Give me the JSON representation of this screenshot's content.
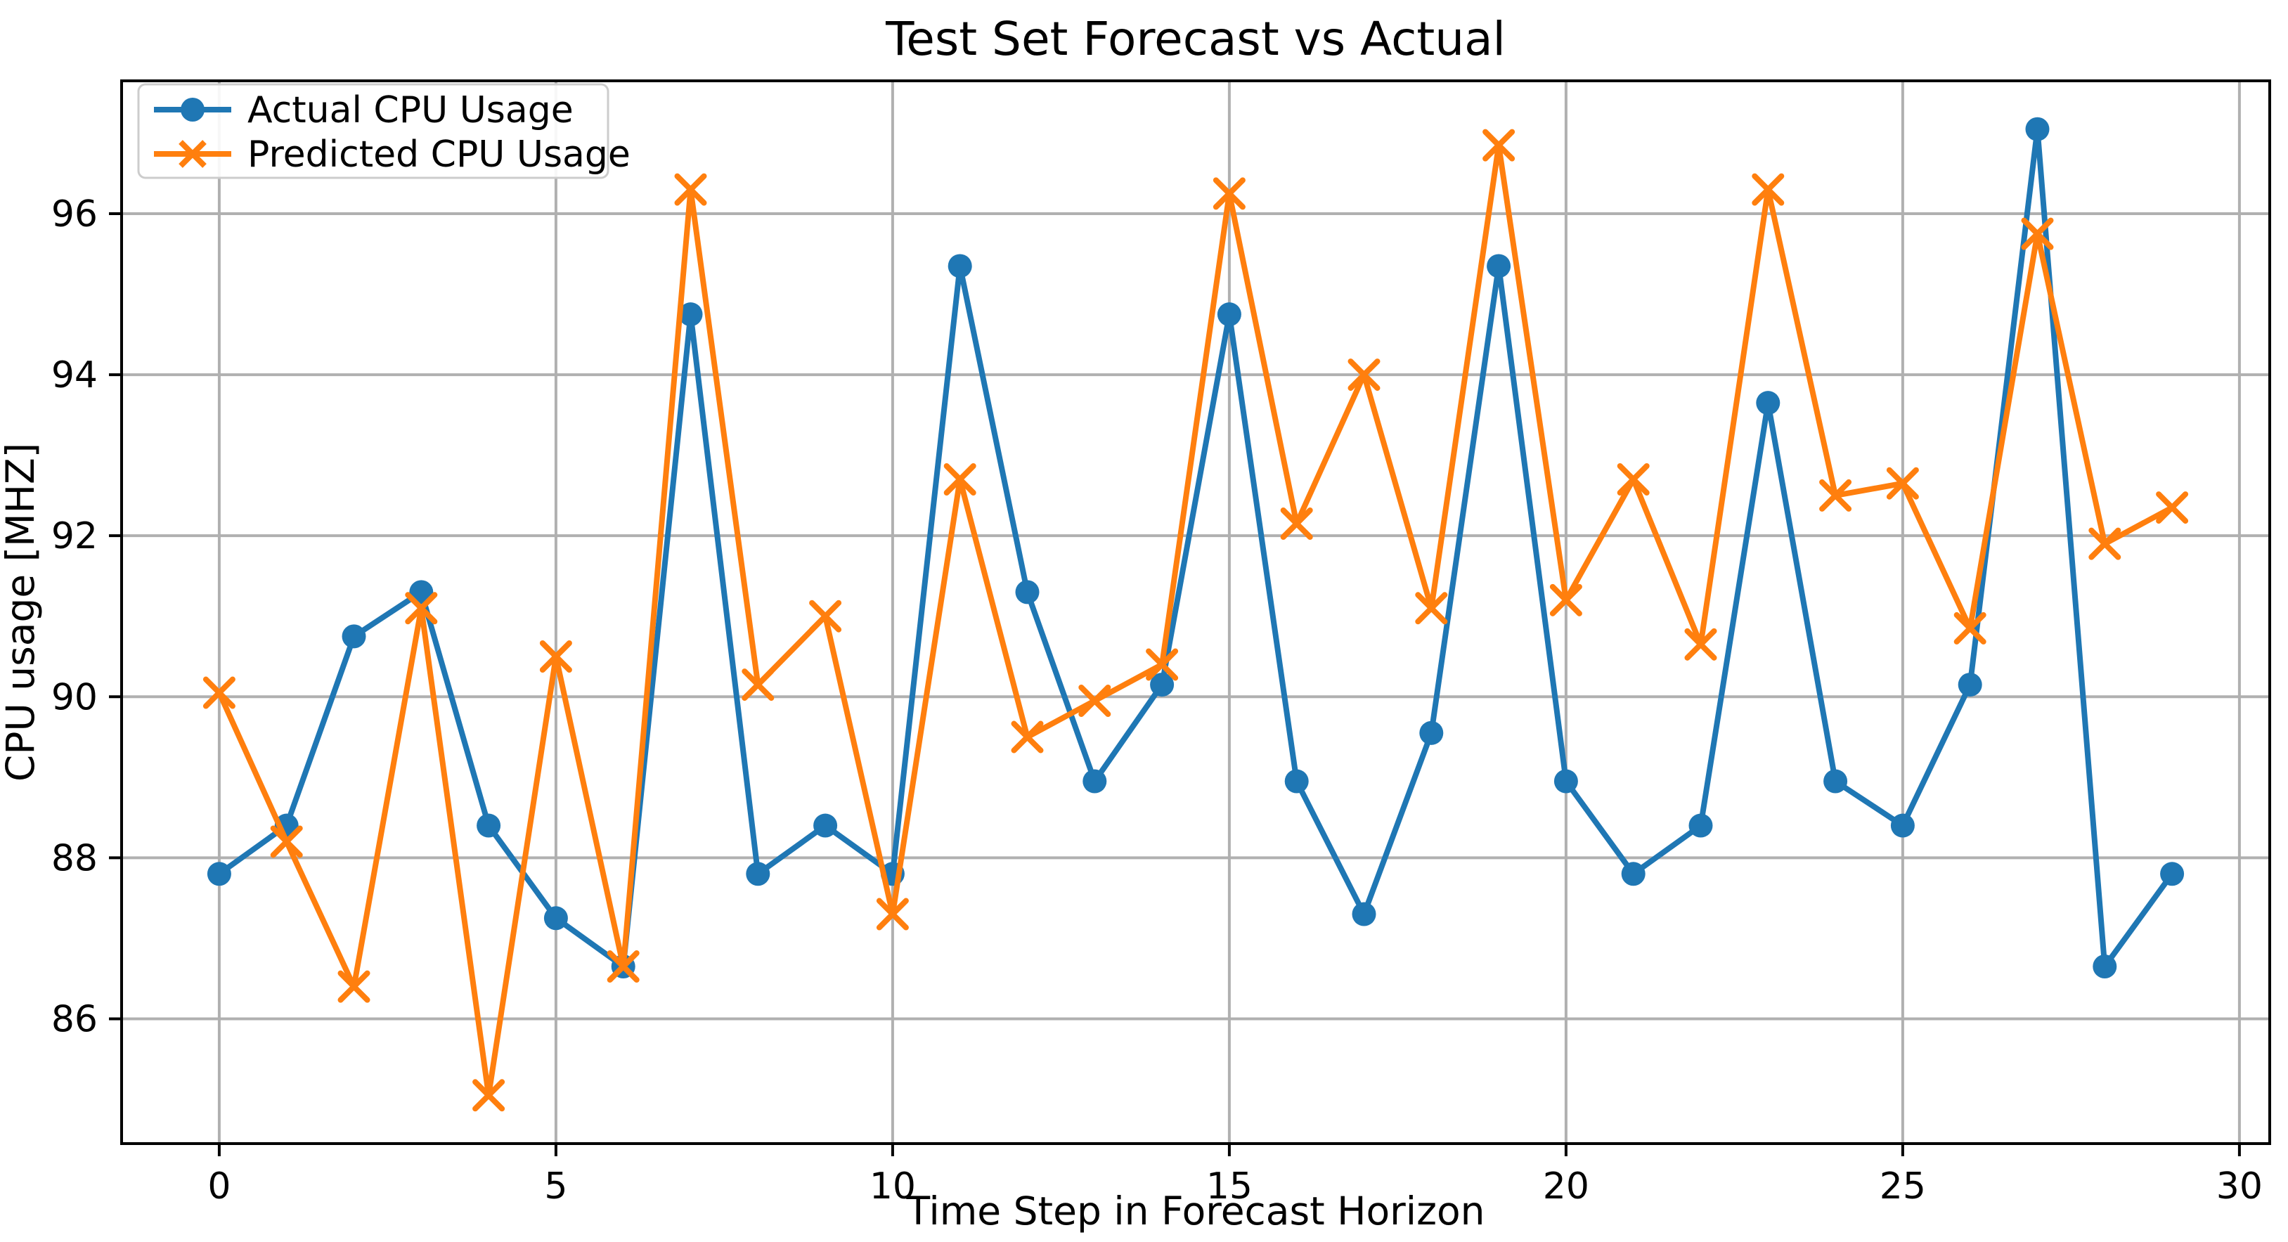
{
  "figure": {
    "background": "#ffffff",
    "plot_background": "#ffffff",
    "grid_color": "#b0b0b0",
    "spine_color": "#000000"
  },
  "chart_data": {
    "type": "line",
    "title": "Test Set Forecast vs Actual",
    "xlabel": "Time Step in Forecast Horizon",
    "ylabel": "CPU usage [MHZ]",
    "grid": true,
    "legend_position": "upper left",
    "xlim": [
      -1.45,
      30.45
    ],
    "ylim": [
      84.45,
      97.65
    ],
    "xticks": [
      0,
      5,
      10,
      15,
      20,
      25,
      30
    ],
    "yticks": [
      86,
      88,
      90,
      92,
      94,
      96
    ],
    "x": [
      0,
      1,
      2,
      3,
      4,
      5,
      6,
      7,
      8,
      9,
      10,
      11,
      12,
      13,
      14,
      15,
      16,
      17,
      18,
      19,
      20,
      21,
      22,
      23,
      24,
      25,
      26,
      27,
      28,
      29
    ],
    "series": [
      {
        "name": "Actual CPU Usage",
        "color": "#1f77b4",
        "marker": "circle",
        "values": [
          87.8,
          88.4,
          90.75,
          91.3,
          88.4,
          87.25,
          86.65,
          94.75,
          87.8,
          88.4,
          87.8,
          95.35,
          91.3,
          88.95,
          90.15,
          94.75,
          88.95,
          87.3,
          89.55,
          95.35,
          88.95,
          87.8,
          88.4,
          93.65,
          88.95,
          88.4,
          90.15,
          97.05,
          86.65,
          87.8
        ]
      },
      {
        "name": "Predicted CPU Usage",
        "color": "#ff7f0e",
        "marker": "x",
        "values": [
          90.05,
          88.2,
          86.4,
          91.1,
          85.05,
          90.5,
          86.65,
          96.3,
          90.15,
          91.0,
          87.3,
          92.7,
          89.5,
          89.95,
          90.4,
          96.25,
          92.15,
          94.0,
          91.1,
          96.85,
          91.2,
          92.7,
          90.65,
          96.3,
          92.5,
          92.65,
          90.85,
          95.75,
          91.9,
          92.35
        ]
      }
    ]
  }
}
